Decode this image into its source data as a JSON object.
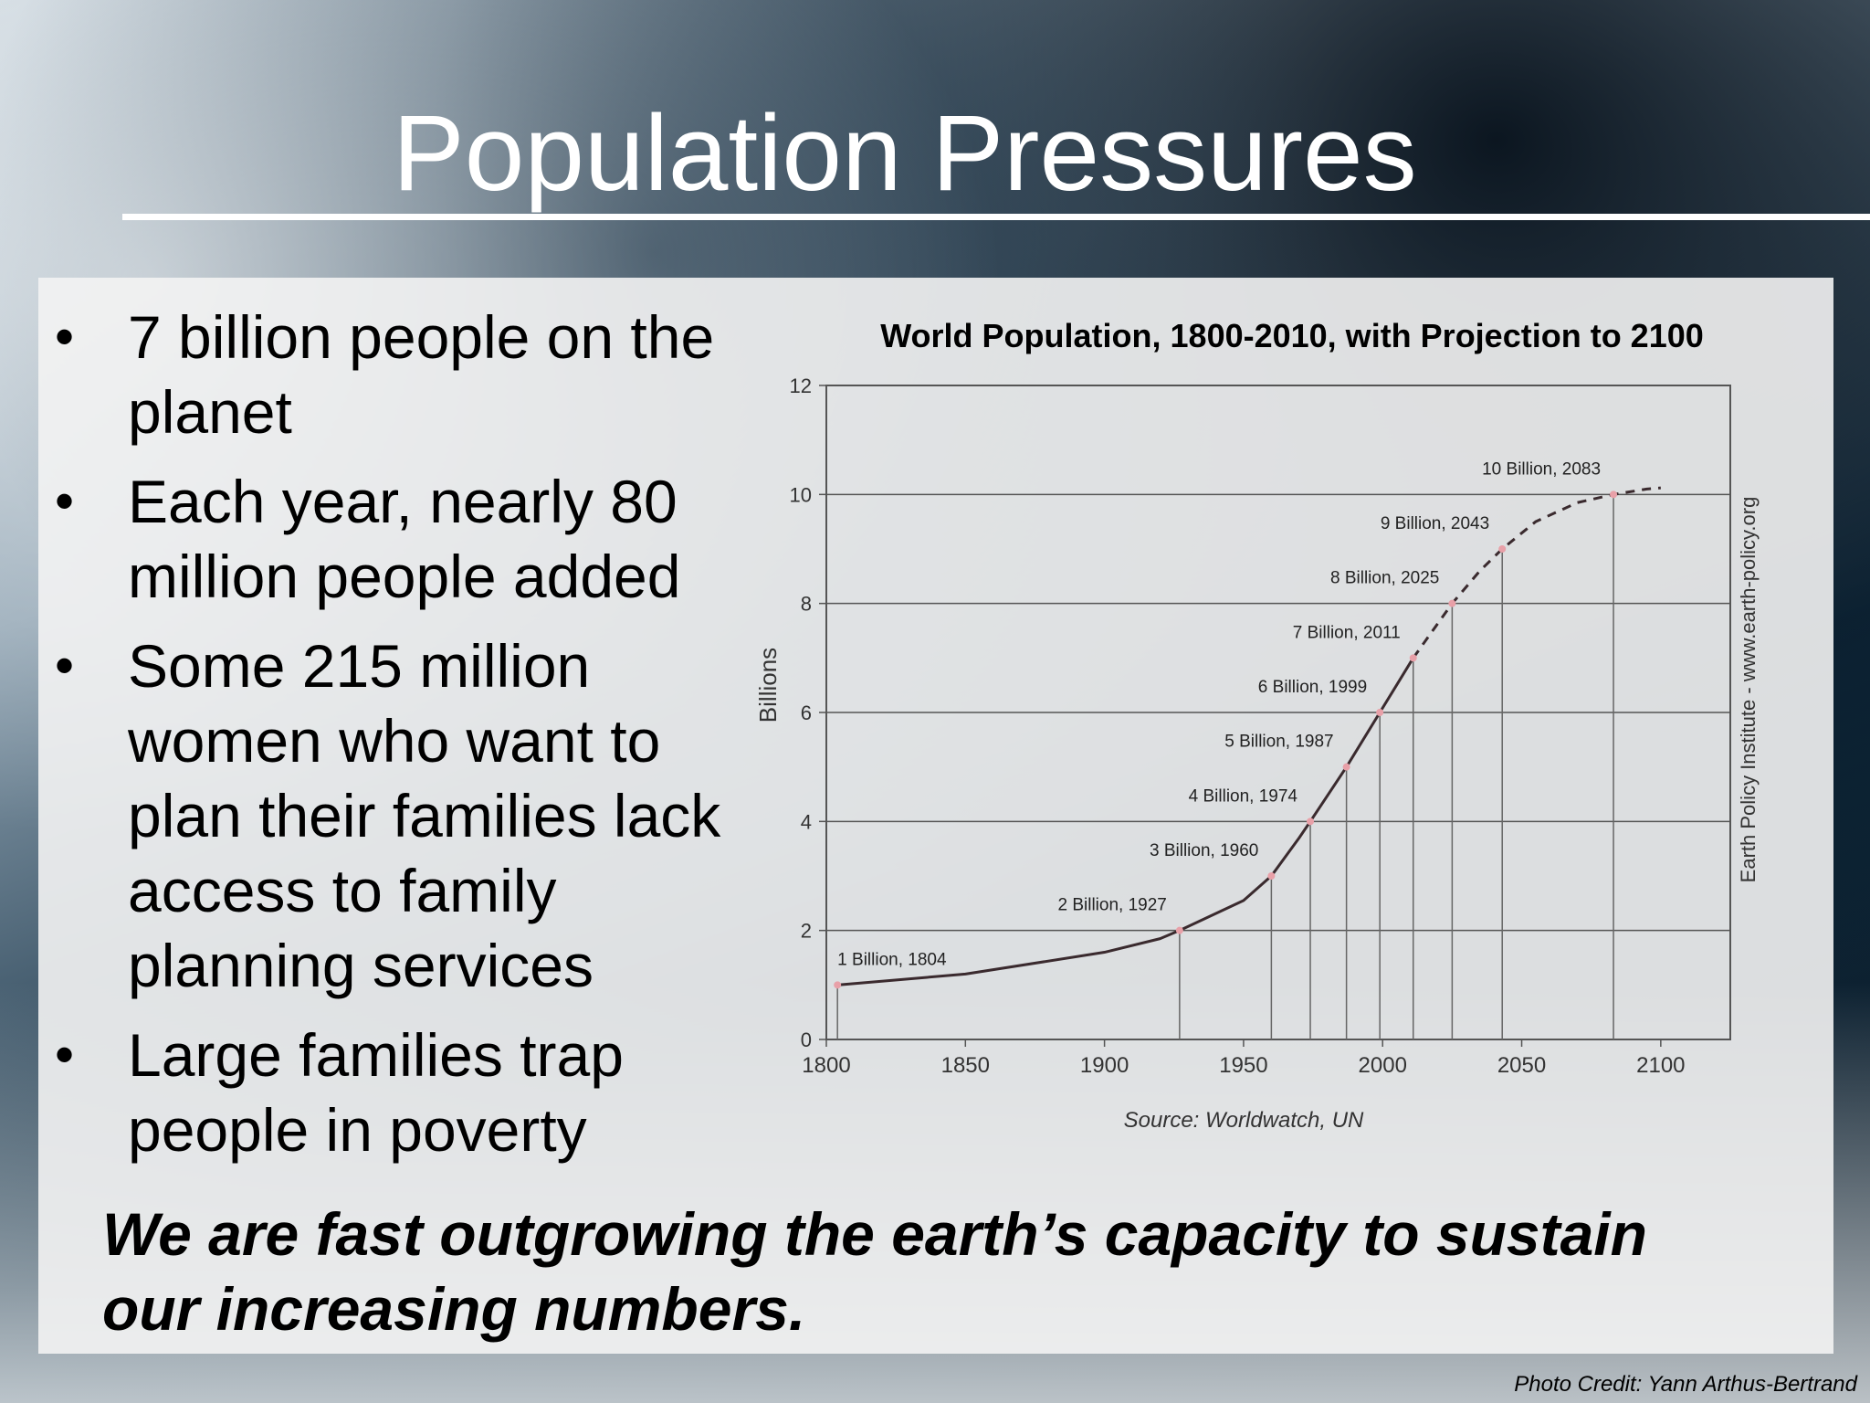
{
  "slide": {
    "title": "Population Pressures",
    "bullets": [
      {
        "lines": [
          "7 billion people on the",
          "planet"
        ]
      },
      {
        "lines": [
          "Each year, nearly  80",
          "million  people added"
        ]
      },
      {
        "lines": [
          "Some 215 million",
          "women who want to",
          "plan their families lack",
          "access to family",
          "planning services"
        ]
      },
      {
        "lines": [
          "Large families trap",
          "people in poverty"
        ]
      }
    ],
    "bullet_symbol": "•",
    "tagline": [
      "We are fast outgrowing the earth’s capacity to sustain",
      "our increasing numbers."
    ],
    "photo_credit": "Photo Credit: Yann Arthus-Bertrand"
  },
  "chart_data": {
    "type": "line",
    "title": "World Population, 1800-2010, with Projection to 2100",
    "xlabel": "",
    "ylabel": "Billions",
    "source": "Source: Worldwatch, UN",
    "side_note": "Earth Policy Institute - www.earth-policy.org",
    "xlim": [
      1800,
      2125
    ],
    "ylim": [
      0,
      12
    ],
    "xticks": [
      1800,
      1850,
      1900,
      1950,
      2000,
      2050,
      2100
    ],
    "yticks": [
      0,
      2,
      4,
      6,
      8,
      10,
      12
    ],
    "grid": "horizontal",
    "series": [
      {
        "style": "solid",
        "x": [
          1804,
          1850,
          1900,
          1920,
          1927,
          1950,
          1960,
          1970,
          1974,
          1987,
          1999,
          2011
        ],
        "y": [
          1,
          1.2,
          1.6,
          1.85,
          2,
          2.55,
          3,
          3.7,
          4,
          5,
          6,
          7
        ]
      },
      {
        "style": "dashed",
        "x": [
          2011,
          2025,
          2035,
          2043,
          2055,
          2070,
          2083,
          2095,
          2100
        ],
        "y": [
          7,
          8,
          8.6,
          9,
          9.5,
          9.85,
          10,
          10.1,
          10.12
        ]
      }
    ],
    "milestones": [
      {
        "label": "1 Billion, 1804",
        "year": 1804,
        "value": 1
      },
      {
        "label": "2 Billion, 1927",
        "year": 1927,
        "value": 2
      },
      {
        "label": "3 Billion, 1960",
        "year": 1960,
        "value": 3
      },
      {
        "label": "4 Billion, 1974",
        "year": 1974,
        "value": 4
      },
      {
        "label": "5 Billion, 1987",
        "year": 1987,
        "value": 5
      },
      {
        "label": "6 Billion, 1999",
        "year": 1999,
        "value": 6
      },
      {
        "label": "7 Billion, 2011",
        "year": 2011,
        "value": 7
      },
      {
        "label": "8 Billion, 2025",
        "year": 2025,
        "value": 8
      },
      {
        "label": "9 Billion, 2043",
        "year": 2043,
        "value": 9
      },
      {
        "label": "10 Billion, 2083",
        "year": 2083,
        "value": 10
      }
    ],
    "colors": {
      "line": "#3a2a2e",
      "marker": "#e8a0a8",
      "grid": "#555555",
      "axis": "#555555"
    }
  }
}
